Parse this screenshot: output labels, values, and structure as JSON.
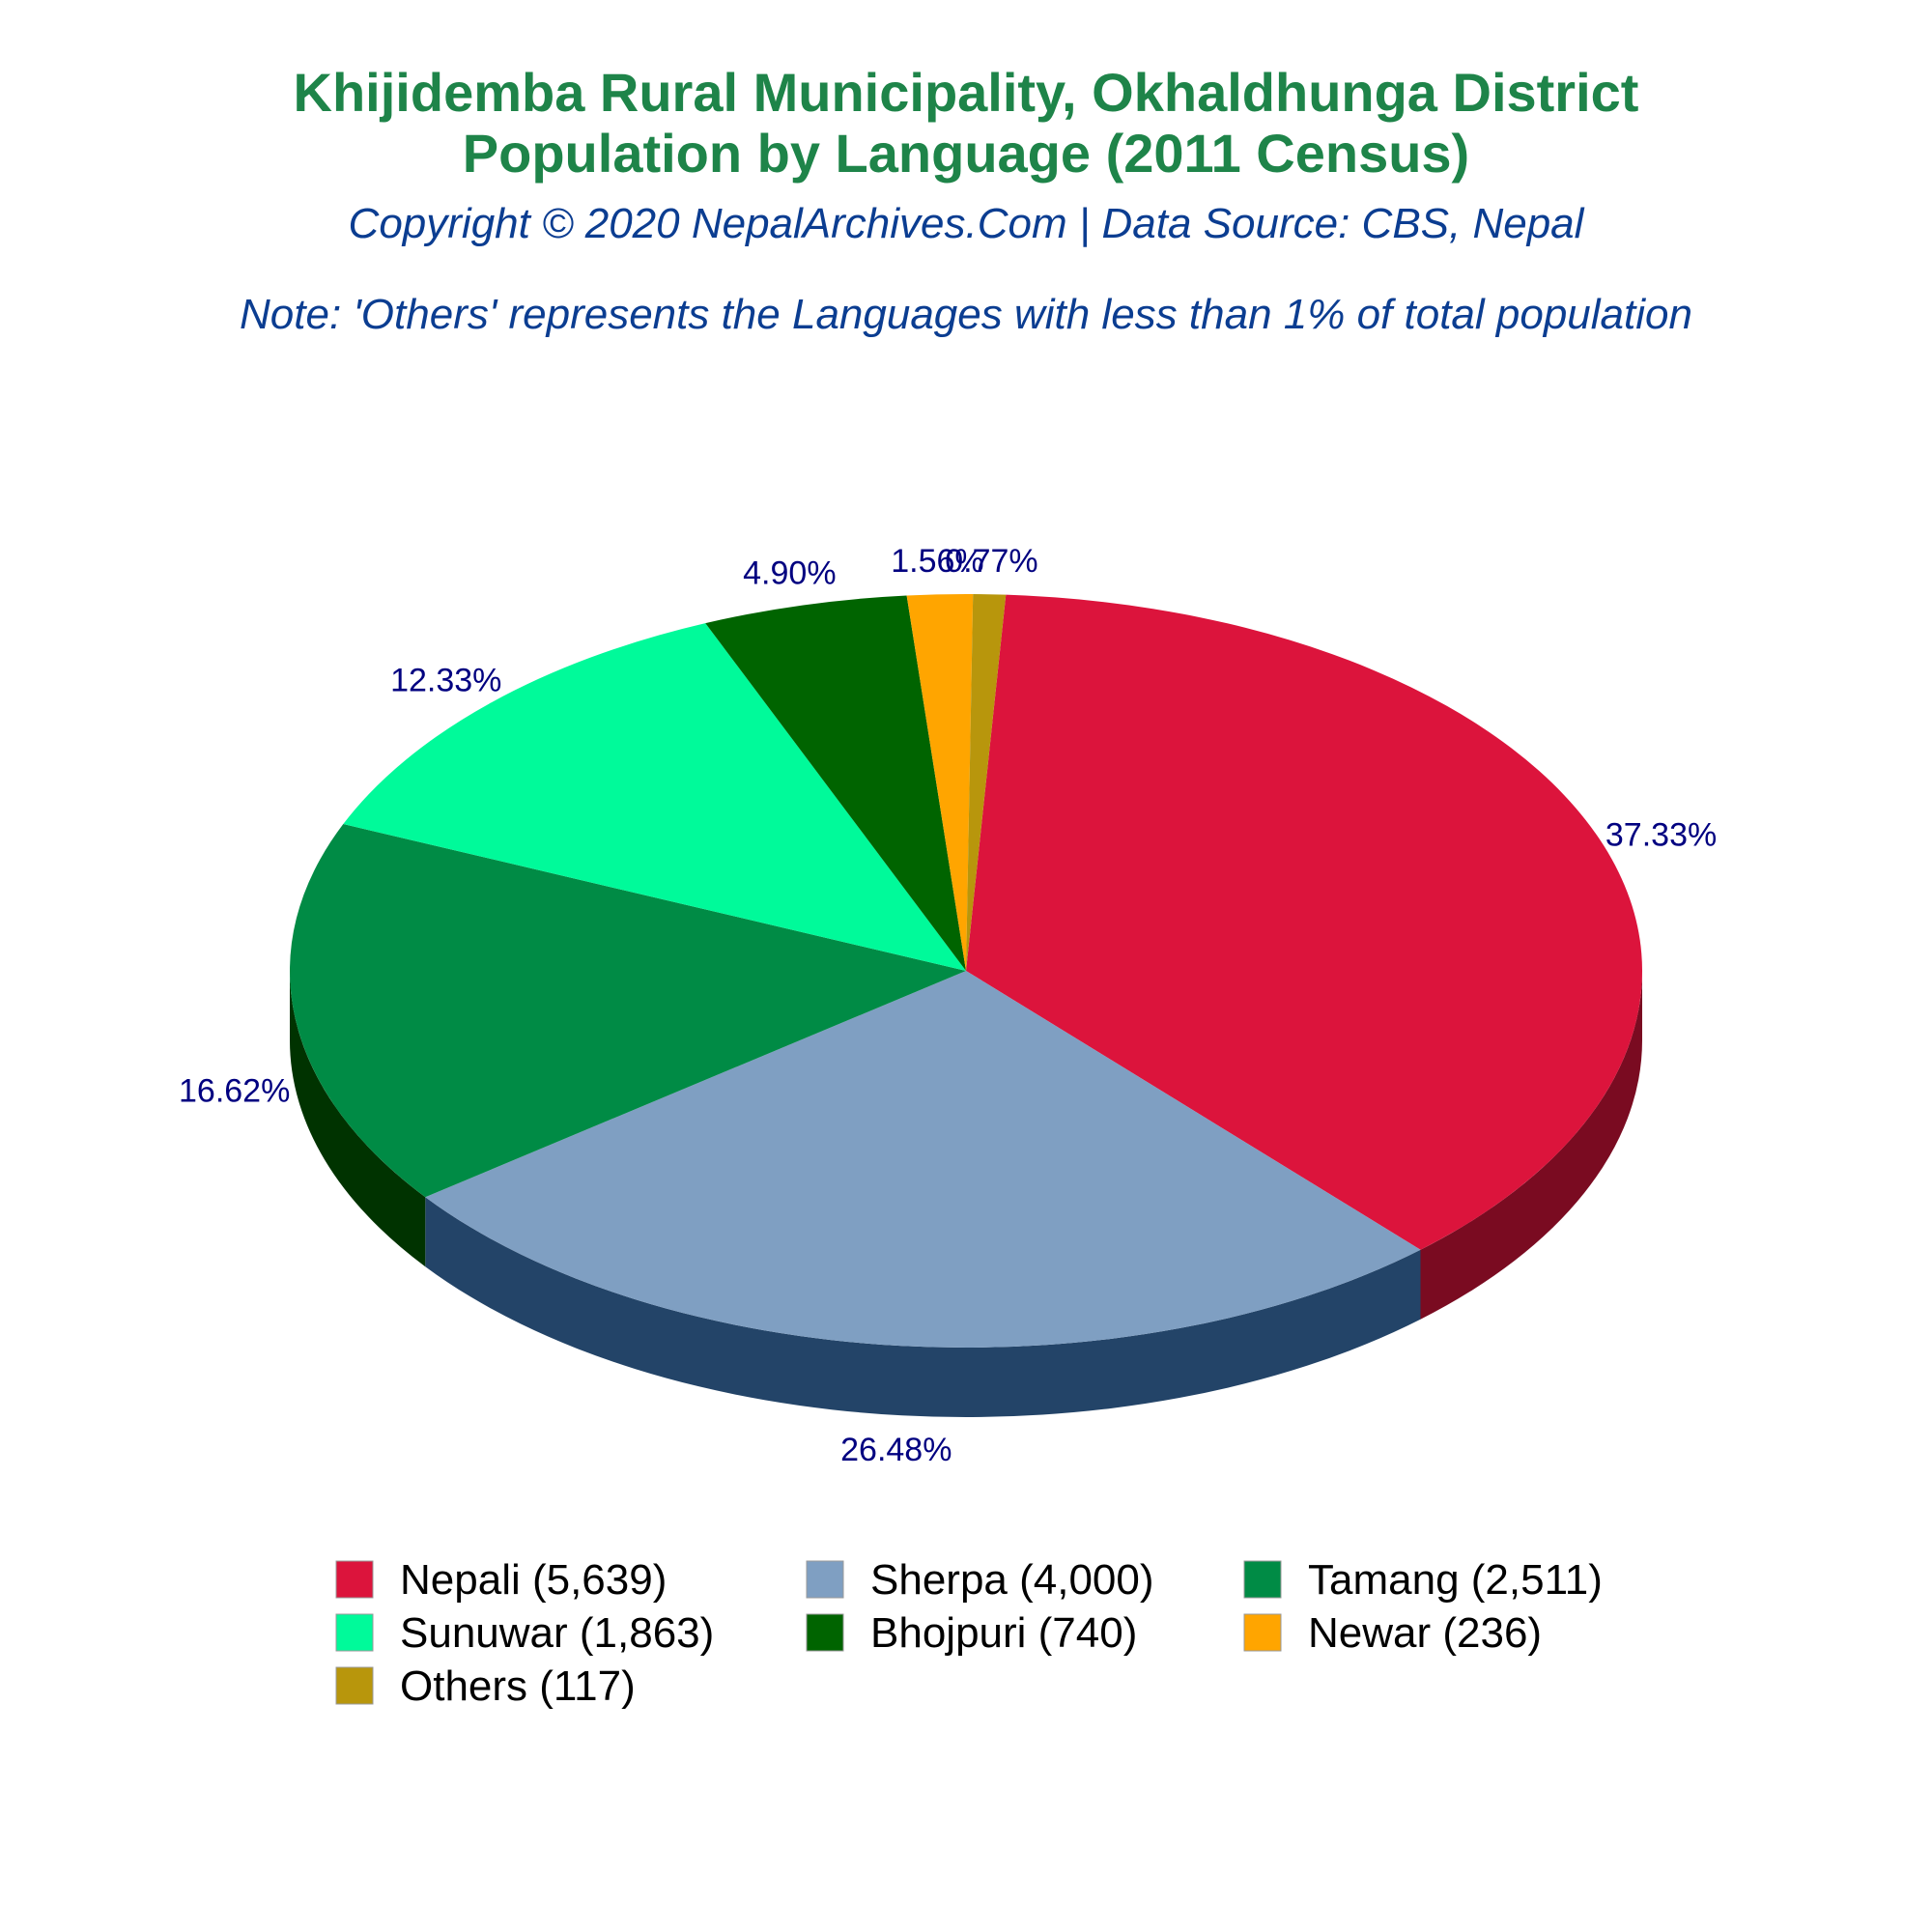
{
  "colors": {
    "title": "#1e8449",
    "subtitle": "#0b3d91",
    "label": "#000080"
  },
  "chart_data": {
    "type": "pie",
    "style": "3d",
    "title_lines": [
      "Khijidemba Rural Municipality, Okhaldhunga District",
      "Population by Language (2011 Census)"
    ],
    "subtitle": "Copyright © 2020 NepalArchives.Com | Data Source: CBS, Nepal",
    "note": "Note: 'Others' represents the Languages with less than 1% of total population",
    "legend_position": "bottom",
    "slices": [
      {
        "name": "Nepali",
        "value": 5639,
        "percent_label": "37.33%",
        "legend_label": "Nepali (5,639)",
        "color": "#dc143c",
        "side_color": "#7a0b21"
      },
      {
        "name": "Sherpa",
        "value": 4000,
        "percent_label": "26.48%",
        "legend_label": "Sherpa (4,000)",
        "color": "#7f9fc2",
        "side_color": "#234468"
      },
      {
        "name": "Tamang",
        "value": 2511,
        "percent_label": "16.62%",
        "legend_label": "Tamang (2,511)",
        "color": "#008b45",
        "side_color": "#003300"
      },
      {
        "name": "Sunuwar",
        "value": 1863,
        "percent_label": "12.33%",
        "legend_label": "Sunuwar (1,863)",
        "color": "#00fa9a",
        "side_color": "#00a040"
      },
      {
        "name": "Bhojpuri",
        "value": 740,
        "percent_label": "4.90%",
        "legend_label": "Bhojpuri (740)",
        "color": "#006400",
        "side_color": "#003a00"
      },
      {
        "name": "Newar",
        "value": 236,
        "percent_label": "1.56%",
        "legend_label": "Newar (236)",
        "color": "#ffa500",
        "side_color": "#a06800"
      },
      {
        "name": "Others",
        "value": 117,
        "percent_label": "0.77%",
        "legend_label": "Others (117)",
        "color": "#b8960c",
        "side_color": "#6e5a07"
      }
    ]
  }
}
